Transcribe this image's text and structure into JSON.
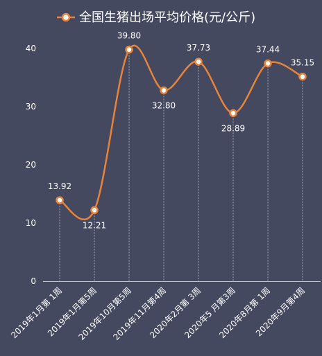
{
  "chart_data": {
    "type": "line",
    "title": "",
    "xlabel": "",
    "ylabel": "",
    "categories": [
      "2019年1月第 1周",
      "2019年1月第5周",
      "2019年10月第5周",
      "2019年11月第4周",
      "2020年2月第 3周",
      "2020年5 月第3周",
      "2020年8月第 1周",
      "2020年9月第4周"
    ],
    "series": [
      {
        "name": "全国生猪出场平均价格(元/公斤)",
        "values": [
          13.92,
          12.21,
          39.8,
          32.8,
          37.73,
          28.89,
          37.44,
          35.15
        ],
        "value_labels": [
          "13.92",
          "12.21",
          "39.80",
          "32.80",
          "37.73",
          "28.89",
          "37.44",
          "35.15"
        ]
      }
    ],
    "ylim": [
      0,
      40
    ],
    "yticks": [
      0,
      10,
      20,
      30,
      40
    ],
    "grid": false,
    "drop_lines": true,
    "smooth": true,
    "legend_position": "top",
    "colors": {
      "background": "#454960",
      "line": "#e8833a",
      "marker_fill": "#ffffff",
      "text": "#ffffff",
      "axis": "#c0c3cf",
      "drop_line": "#b9bccb"
    }
  }
}
